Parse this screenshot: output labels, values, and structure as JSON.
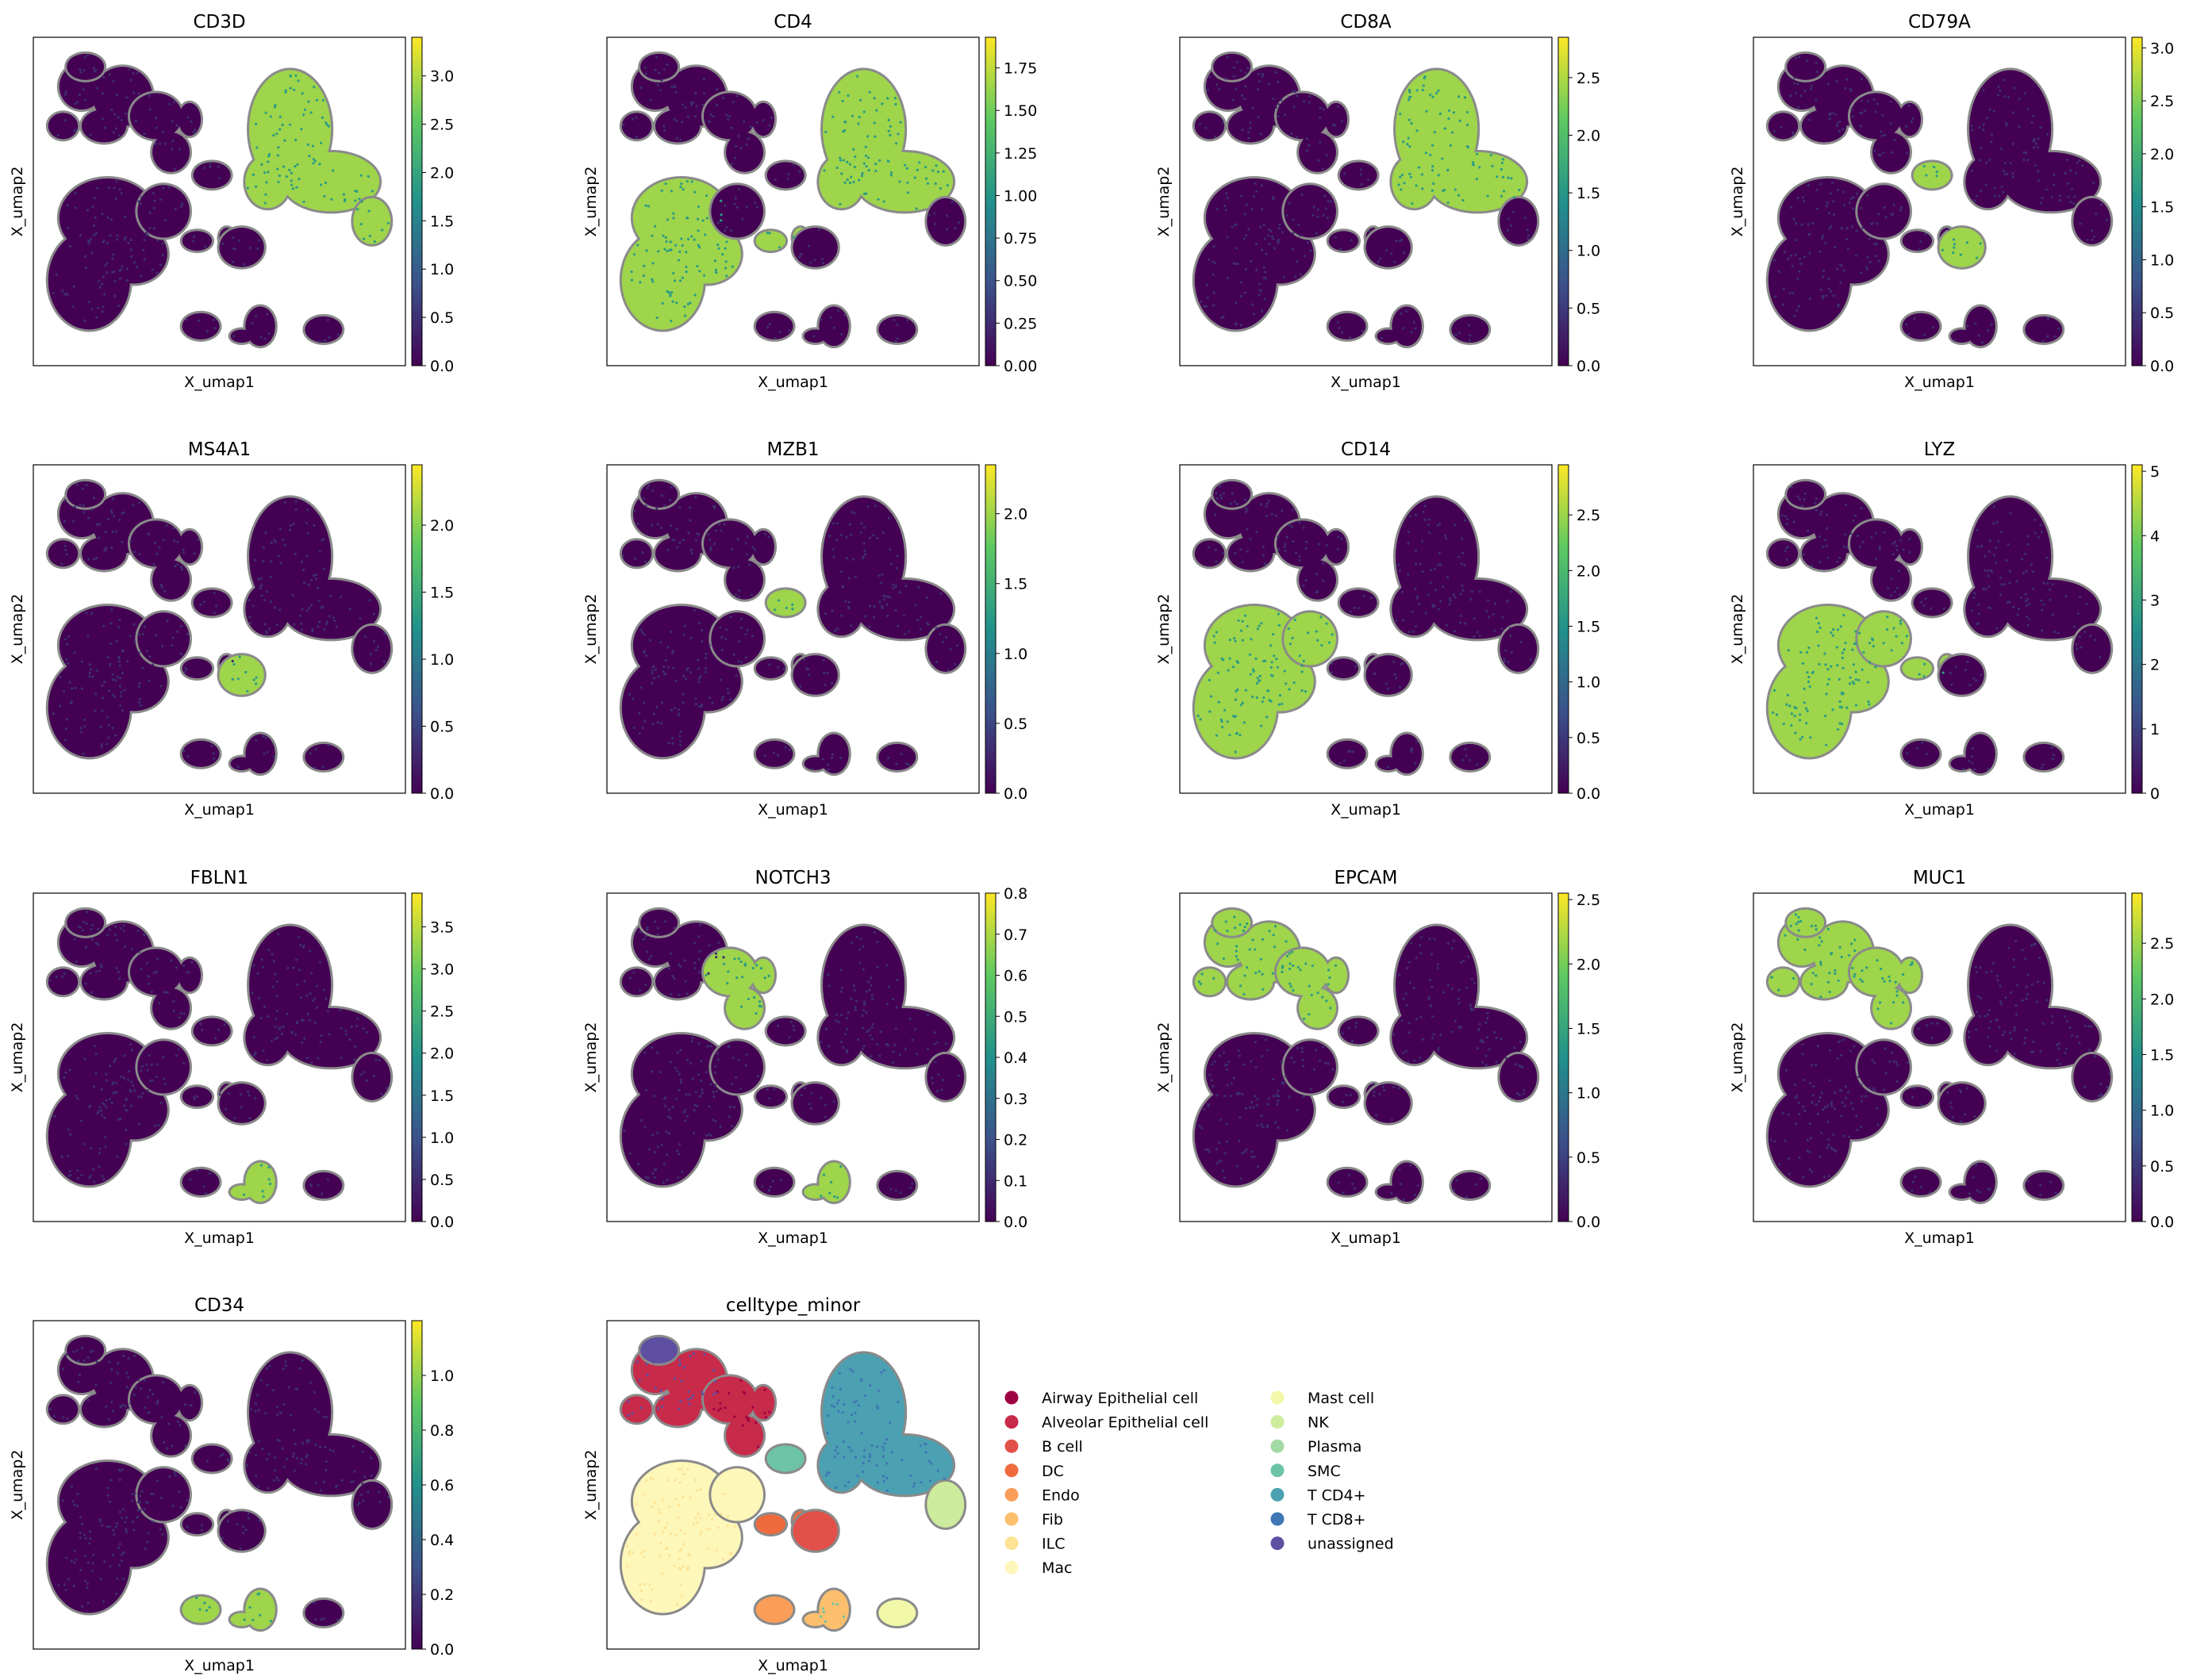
{
  "figure": {
    "umap_axis": {
      "xlabel": "X_umap1",
      "ylabel": "X_umap2"
    },
    "colormap": [
      "#440154",
      "#3b528b",
      "#21918c",
      "#5ec962",
      "#fde725"
    ],
    "background_color": "#440154"
  },
  "chart_data": [
    {
      "type": "scatter",
      "title": "CD3D",
      "xlabel": "X_umap1",
      "ylabel": "X_umap2",
      "colorbar": {
        "range": [
          0,
          3.4
        ],
        "ticks": [
          0.0,
          0.5,
          1.0,
          1.5,
          2.0,
          2.5,
          3.0
        ],
        "tick_labels": [
          "0.0",
          "0.5",
          "1.0",
          "1.5",
          "2.0",
          "2.5",
          "3.0"
        ]
      },
      "high_clusters": [
        "T_main",
        "T_tail"
      ]
    },
    {
      "type": "scatter",
      "title": "CD4",
      "xlabel": "X_umap1",
      "ylabel": "X_umap2",
      "colorbar": {
        "range": [
          0,
          1.93
        ],
        "ticks": [
          0.0,
          0.25,
          0.5,
          0.75,
          1.0,
          1.25,
          1.5,
          1.75
        ],
        "tick_labels": [
          "0.00",
          "0.25",
          "0.50",
          "0.75",
          "1.00",
          "1.25",
          "1.50",
          "1.75"
        ]
      },
      "high_clusters": [
        "Mac_big",
        "T_main",
        "DC_small"
      ]
    },
    {
      "type": "scatter",
      "title": "CD8A",
      "xlabel": "X_umap1",
      "ylabel": "X_umap2",
      "colorbar": {
        "range": [
          0,
          2.85
        ],
        "ticks": [
          0.0,
          0.5,
          1.0,
          1.5,
          2.0,
          2.5
        ],
        "tick_labels": [
          "0.0",
          "0.5",
          "1.0",
          "1.5",
          "2.0",
          "2.5"
        ]
      },
      "high_clusters": [
        "T_main"
      ]
    },
    {
      "type": "scatter",
      "title": "CD79A",
      "xlabel": "X_umap1",
      "ylabel": "X_umap2",
      "colorbar": {
        "range": [
          0,
          3.1
        ],
        "ticks": [
          0.0,
          0.5,
          1.0,
          1.5,
          2.0,
          2.5,
          3.0
        ],
        "tick_labels": [
          "0.0",
          "0.5",
          "1.0",
          "1.5",
          "2.0",
          "2.5",
          "3.0"
        ]
      },
      "high_clusters": [
        "B",
        "Plasma"
      ]
    },
    {
      "type": "scatter",
      "title": "MS4A1",
      "xlabel": "X_umap1",
      "ylabel": "X_umap2",
      "colorbar": {
        "range": [
          0,
          2.45
        ],
        "ticks": [
          0.0,
          0.5,
          1.0,
          1.5,
          2.0
        ],
        "tick_labels": [
          "0.0",
          "0.5",
          "1.0",
          "1.5",
          "2.0"
        ]
      },
      "high_clusters": [
        "B"
      ]
    },
    {
      "type": "scatter",
      "title": "MZB1",
      "xlabel": "X_umap1",
      "ylabel": "X_umap2",
      "colorbar": {
        "range": [
          0,
          2.35
        ],
        "ticks": [
          0.0,
          0.5,
          1.0,
          1.5,
          2.0
        ],
        "tick_labels": [
          "0.0",
          "0.5",
          "1.0",
          "1.5",
          "2.0"
        ]
      },
      "high_clusters": [
        "Plasma"
      ]
    },
    {
      "type": "scatter",
      "title": "CD14",
      "xlabel": "X_umap1",
      "ylabel": "X_umap2",
      "colorbar": {
        "range": [
          0,
          2.95
        ],
        "ticks": [
          0.0,
          0.5,
          1.0,
          1.5,
          2.0,
          2.5
        ],
        "tick_labels": [
          "0.0",
          "0.5",
          "1.0",
          "1.5",
          "2.0",
          "2.5"
        ]
      },
      "high_clusters": [
        "Mac_big",
        "Mac_upper"
      ]
    },
    {
      "type": "scatter",
      "title": "LYZ",
      "xlabel": "X_umap1",
      "ylabel": "X_umap2",
      "colorbar": {
        "range": [
          0,
          5.1
        ],
        "ticks": [
          0,
          1,
          2,
          3,
          4,
          5
        ],
        "tick_labels": [
          "0",
          "1",
          "2",
          "3",
          "4",
          "5"
        ]
      },
      "high_clusters": [
        "Mac_big",
        "Mac_upper",
        "DC_small"
      ]
    },
    {
      "type": "scatter",
      "title": "FBLN1",
      "xlabel": "X_umap1",
      "ylabel": "X_umap2",
      "colorbar": {
        "range": [
          0,
          3.9
        ],
        "ticks": [
          0.0,
          0.5,
          1.0,
          1.5,
          2.0,
          2.5,
          3.0,
          3.5
        ],
        "tick_labels": [
          "0.0",
          "0.5",
          "1.0",
          "1.5",
          "2.0",
          "2.5",
          "3.0",
          "3.5"
        ]
      },
      "high_clusters": [
        "Fib"
      ]
    },
    {
      "type": "scatter",
      "title": "NOTCH3",
      "xlabel": "X_umap1",
      "ylabel": "X_umap2",
      "colorbar": {
        "range": [
          0,
          0.8
        ],
        "ticks": [
          0.0,
          0.1,
          0.2,
          0.3,
          0.4,
          0.5,
          0.6,
          0.7,
          0.8
        ],
        "tick_labels": [
          "0.0",
          "0.1",
          "0.2",
          "0.3",
          "0.4",
          "0.5",
          "0.6",
          "0.7",
          "0.8"
        ]
      },
      "high_clusters": [
        "Epi_right",
        "Fib"
      ]
    },
    {
      "type": "scatter",
      "title": "EPCAM",
      "xlabel": "X_umap1",
      "ylabel": "X_umap2",
      "colorbar": {
        "range": [
          0,
          2.55
        ],
        "ticks": [
          0.0,
          0.5,
          1.0,
          1.5,
          2.0,
          2.5
        ],
        "tick_labels": [
          "0.0",
          "0.5",
          "1.0",
          "1.5",
          "2.0",
          "2.5"
        ]
      },
      "high_clusters": [
        "Epi_left",
        "Epi_right",
        "Epi_top"
      ]
    },
    {
      "type": "scatter",
      "title": "MUC1",
      "xlabel": "X_umap1",
      "ylabel": "X_umap2",
      "colorbar": {
        "range": [
          0,
          2.95
        ],
        "ticks": [
          0.0,
          0.5,
          1.0,
          1.5,
          2.0,
          2.5
        ],
        "tick_labels": [
          "0.0",
          "0.5",
          "1.0",
          "1.5",
          "2.0",
          "2.5"
        ]
      },
      "high_clusters": [
        "Epi_left",
        "Epi_right",
        "Epi_top"
      ]
    },
    {
      "type": "scatter",
      "title": "CD34",
      "xlabel": "X_umap1",
      "ylabel": "X_umap2",
      "colorbar": {
        "range": [
          0,
          1.2
        ],
        "ticks": [
          0.0,
          0.2,
          0.4,
          0.6,
          0.8,
          1.0
        ],
        "tick_labels": [
          "0.0",
          "0.2",
          "0.4",
          "0.6",
          "0.8",
          "1.0"
        ]
      },
      "high_clusters": [
        "Endo",
        "Fib"
      ]
    },
    {
      "type": "scatter",
      "title": "celltype_minor",
      "xlabel": "X_umap1",
      "ylabel": "X_umap2",
      "legend_position": "right",
      "categories": [
        {
          "name": "Airway Epithelial cell",
          "color": "#9e0142"
        },
        {
          "name": "Alveolar Epithelial cell",
          "color": "#c82a4a"
        },
        {
          "name": "B cell",
          "color": "#e2504a"
        },
        {
          "name": "DC",
          "color": "#ef6b3e"
        },
        {
          "name": "Endo",
          "color": "#f99d59"
        },
        {
          "name": "Fib",
          "color": "#fbbf6e"
        },
        {
          "name": "ILC",
          "color": "#fde294"
        },
        {
          "name": "Mac",
          "color": "#fef7ba"
        },
        {
          "name": "Mast cell",
          "color": "#f1f9a9"
        },
        {
          "name": "NK",
          "color": "#cdeb9d"
        },
        {
          "name": "Plasma",
          "color": "#a3d9a4"
        },
        {
          "name": "SMC",
          "color": "#6cc3a5"
        },
        {
          "name": "T CD4+",
          "color": "#4ba0b1"
        },
        {
          "name": "T CD8+",
          "color": "#3f76b4"
        },
        {
          "name": "unassigned",
          "color": "#5e4fa2"
        }
      ]
    }
  ]
}
